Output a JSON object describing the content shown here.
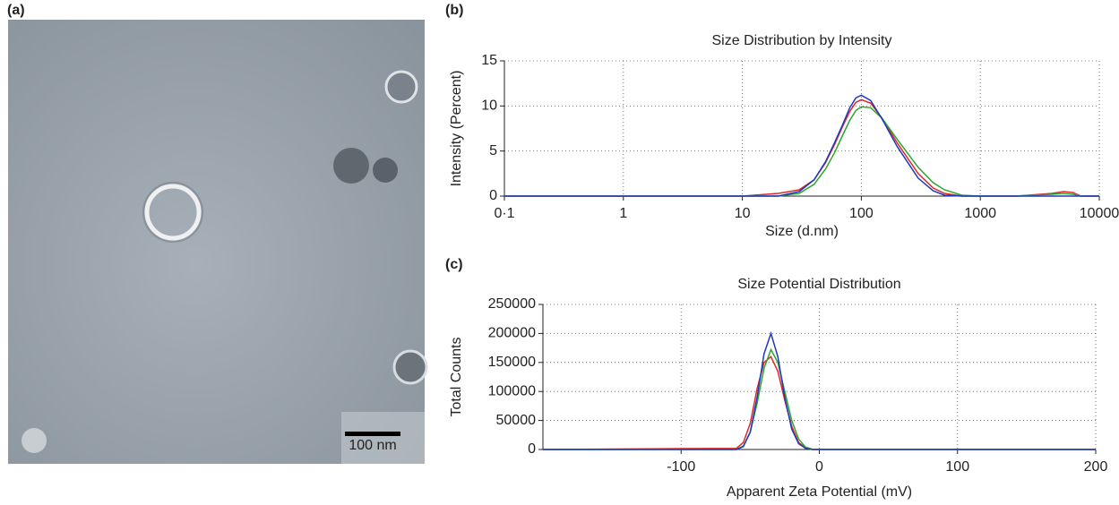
{
  "image": {
    "panel_label": "(a)",
    "scale_bar": "100 nm"
  },
  "chart_data": [
    {
      "type": "line",
      "panel_label": "(b)",
      "title": "Size Distribution by Intensity",
      "x_label": "Size (d.nm)",
      "y_label": "Intensity (Percent)",
      "xscale": "log",
      "grid": true,
      "x": [
        0.1,
        10,
        20,
        30,
        40,
        50,
        60,
        70,
        80,
        90,
        100,
        120,
        150,
        200,
        300,
        400,
        500,
        700,
        1000,
        2000,
        4000,
        5000,
        6000,
        7000,
        10000
      ],
      "series": [
        {
          "color": "#e02828",
          "values": [
            0,
            0,
            0.3,
            0.7,
            1.8,
            3.7,
            5.8,
            7.8,
            9.4,
            10.4,
            10.7,
            10.3,
            8.6,
            5.9,
            2.5,
            0.9,
            0.3,
            0,
            0,
            0,
            0.3,
            0.5,
            0.4,
            0,
            0
          ]
        },
        {
          "color": "#2aa82a",
          "values": [
            0,
            0,
            0,
            0.3,
            1.3,
            3.0,
            4.9,
            6.8,
            8.4,
            9.5,
            9.9,
            9.8,
            8.6,
            6.3,
            3.2,
            1.5,
            0.7,
            0.1,
            0,
            0,
            0.2,
            0.3,
            0.2,
            0,
            0
          ]
        },
        {
          "color": "#2038c0",
          "values": [
            0,
            0,
            0,
            0.5,
            1.8,
            3.8,
            6.0,
            8.0,
            9.8,
            10.9,
            11.2,
            10.6,
            8.5,
            5.5,
            2.0,
            0.6,
            0.1,
            0,
            0,
            0,
            0,
            0,
            0,
            0,
            0
          ]
        }
      ],
      "xlim": [
        0.1,
        10000
      ],
      "xticks": [
        {
          "value": 0.1,
          "label": "0·1"
        },
        1,
        10,
        100,
        1000,
        10000
      ],
      "ylim": [
        0,
        15
      ],
      "yticks": [
        0,
        5,
        10,
        15
      ]
    },
    {
      "type": "line",
      "panel_label": "(c)",
      "title": "Size Potential Distribution",
      "x_label": "Apparent Zeta Potential (mV)",
      "y_label": "Total Counts",
      "grid": true,
      "x": [
        -200,
        -60,
        -55,
        -50,
        -45,
        -40,
        -35,
        -30,
        -25,
        -20,
        -15,
        -10,
        -5,
        0,
        200
      ],
      "series": [
        {
          "color": "#e02828",
          "values": [
            0,
            2000,
            12000,
            45000,
            105000,
            150000,
            160000,
            135000,
            85000,
            40000,
            12000,
            3000,
            0,
            0,
            0
          ]
        },
        {
          "color": "#2aa82a",
          "values": [
            0,
            0,
            6000,
            30000,
            80000,
            140000,
            172000,
            150000,
            100000,
            50000,
            18000,
            4000,
            500,
            0,
            0
          ]
        },
        {
          "color": "#2038c0",
          "values": [
            0,
            0,
            5000,
            30000,
            90000,
            165000,
            200000,
            160000,
            90000,
            35000,
            10000,
            2000,
            0,
            0,
            0
          ]
        }
      ],
      "xlim": [
        -200,
        200
      ],
      "xticks": [
        -100,
        0,
        100,
        200
      ],
      "ylim": [
        0,
        250000
      ],
      "yticks": [
        0,
        50000,
        100000,
        150000,
        200000,
        250000
      ]
    }
  ]
}
